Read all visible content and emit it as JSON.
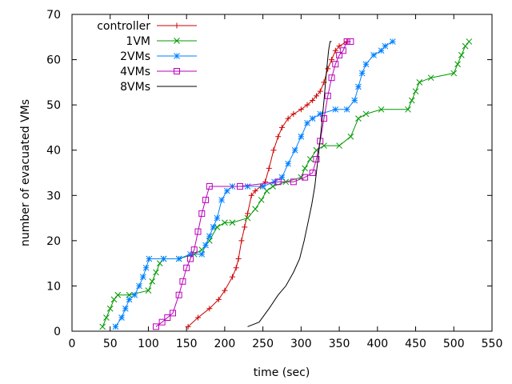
{
  "chart_data": {
    "type": "line",
    "xlabel": "time (sec)",
    "ylabel": "number of evacuated VMs",
    "xlim": [
      0,
      550
    ],
    "ylim": [
      0,
      70
    ],
    "xticks": [
      0,
      50,
      100,
      150,
      200,
      250,
      300,
      350,
      400,
      450,
      500,
      550
    ],
    "yticks": [
      0,
      10,
      20,
      30,
      40,
      50,
      60,
      70
    ],
    "grid": false,
    "legend_position": "top-left",
    "series": [
      {
        "name": "controller",
        "color": "#cc0000",
        "marker": "plus",
        "points": [
          [
            152,
            1
          ],
          [
            165,
            3
          ],
          [
            180,
            5
          ],
          [
            192,
            7
          ],
          [
            200,
            9
          ],
          [
            210,
            12
          ],
          [
            215,
            14
          ],
          [
            218,
            16
          ],
          [
            222,
            20
          ],
          [
            226,
            23
          ],
          [
            230,
            26
          ],
          [
            235,
            30
          ],
          [
            240,
            31
          ],
          [
            247,
            32
          ],
          [
            253,
            33
          ],
          [
            258,
            36
          ],
          [
            264,
            40
          ],
          [
            270,
            43
          ],
          [
            275,
            45
          ],
          [
            283,
            47
          ],
          [
            290,
            48
          ],
          [
            300,
            49
          ],
          [
            308,
            50
          ],
          [
            315,
            51
          ],
          [
            320,
            52
          ],
          [
            325,
            53
          ],
          [
            330,
            55
          ],
          [
            335,
            58
          ],
          [
            340,
            60
          ],
          [
            345,
            62
          ],
          [
            350,
            63
          ],
          [
            360,
            64
          ]
        ]
      },
      {
        "name": "1VM",
        "color": "#009900",
        "marker": "x",
        "points": [
          [
            40,
            1
          ],
          [
            45,
            3
          ],
          [
            50,
            5
          ],
          [
            55,
            7
          ],
          [
            60,
            8
          ],
          [
            75,
            8
          ],
          [
            100,
            9
          ],
          [
            105,
            11
          ],
          [
            110,
            13
          ],
          [
            115,
            15
          ],
          [
            120,
            16
          ],
          [
            140,
            16
          ],
          [
            160,
            17
          ],
          [
            170,
            18
          ],
          [
            180,
            20
          ],
          [
            190,
            23
          ],
          [
            200,
            24
          ],
          [
            210,
            24
          ],
          [
            230,
            25
          ],
          [
            240,
            27
          ],
          [
            248,
            29
          ],
          [
            255,
            31
          ],
          [
            263,
            32
          ],
          [
            280,
            33
          ],
          [
            300,
            34
          ],
          [
            305,
            36
          ],
          [
            312,
            38
          ],
          [
            320,
            40
          ],
          [
            330,
            41
          ],
          [
            350,
            41
          ],
          [
            365,
            43
          ],
          [
            375,
            47
          ],
          [
            385,
            48
          ],
          [
            405,
            49
          ],
          [
            440,
            49
          ],
          [
            445,
            51
          ],
          [
            450,
            53
          ],
          [
            455,
            55
          ],
          [
            470,
            56
          ],
          [
            500,
            57
          ],
          [
            505,
            59
          ],
          [
            510,
            61
          ],
          [
            515,
            63
          ],
          [
            520,
            64
          ]
        ]
      },
      {
        "name": "2VMs",
        "color": "#0080ff",
        "marker": "star",
        "points": [
          [
            57,
            1
          ],
          [
            65,
            3
          ],
          [
            70,
            5
          ],
          [
            75,
            7
          ],
          [
            82,
            8
          ],
          [
            88,
            10
          ],
          [
            93,
            12
          ],
          [
            97,
            14
          ],
          [
            101,
            16
          ],
          [
            120,
            16
          ],
          [
            140,
            16
          ],
          [
            155,
            17
          ],
          [
            170,
            17
          ],
          [
            175,
            19
          ],
          [
            180,
            21
          ],
          [
            185,
            23
          ],
          [
            190,
            25
          ],
          [
            196,
            29
          ],
          [
            203,
            31
          ],
          [
            210,
            32
          ],
          [
            230,
            32
          ],
          [
            250,
            32
          ],
          [
            265,
            33
          ],
          [
            275,
            34
          ],
          [
            283,
            37
          ],
          [
            292,
            40
          ],
          [
            300,
            43
          ],
          [
            308,
            46
          ],
          [
            315,
            47
          ],
          [
            325,
            48
          ],
          [
            345,
            49
          ],
          [
            360,
            49
          ],
          [
            370,
            51
          ],
          [
            375,
            54
          ],
          [
            380,
            57
          ],
          [
            385,
            59
          ],
          [
            395,
            61
          ],
          [
            405,
            62
          ],
          [
            410,
            63
          ],
          [
            420,
            64
          ]
        ]
      },
      {
        "name": "4VMs",
        "color": "#bb00bb",
        "marker": "square",
        "points": [
          [
            110,
            1
          ],
          [
            118,
            2
          ],
          [
            125,
            3
          ],
          [
            132,
            4
          ],
          [
            140,
            8
          ],
          [
            145,
            11
          ],
          [
            150,
            14
          ],
          [
            155,
            16
          ],
          [
            160,
            18
          ],
          [
            165,
            22
          ],
          [
            170,
            26
          ],
          [
            175,
            29
          ],
          [
            180,
            32
          ],
          [
            220,
            32
          ],
          [
            270,
            33
          ],
          [
            290,
            33
          ],
          [
            305,
            34
          ],
          [
            315,
            35
          ],
          [
            320,
            38
          ],
          [
            325,
            42
          ],
          [
            330,
            47
          ],
          [
            335,
            52
          ],
          [
            340,
            56
          ],
          [
            345,
            59
          ],
          [
            350,
            61
          ],
          [
            355,
            62
          ],
          [
            360,
            64
          ],
          [
            365,
            64
          ]
        ]
      },
      {
        "name": "8VMs",
        "color": "#000000",
        "marker": "none",
        "points": [
          [
            230,
            1
          ],
          [
            245,
            2
          ],
          [
            258,
            5
          ],
          [
            270,
            8
          ],
          [
            280,
            10
          ],
          [
            290,
            13
          ],
          [
            298,
            16
          ],
          [
            304,
            20
          ],
          [
            309,
            24
          ],
          [
            314,
            28
          ],
          [
            318,
            32
          ],
          [
            322,
            38
          ],
          [
            326,
            44
          ],
          [
            330,
            51
          ],
          [
            333,
            57
          ],
          [
            336,
            62
          ],
          [
            338,
            64
          ],
          [
            340,
            64
          ]
        ]
      }
    ]
  }
}
